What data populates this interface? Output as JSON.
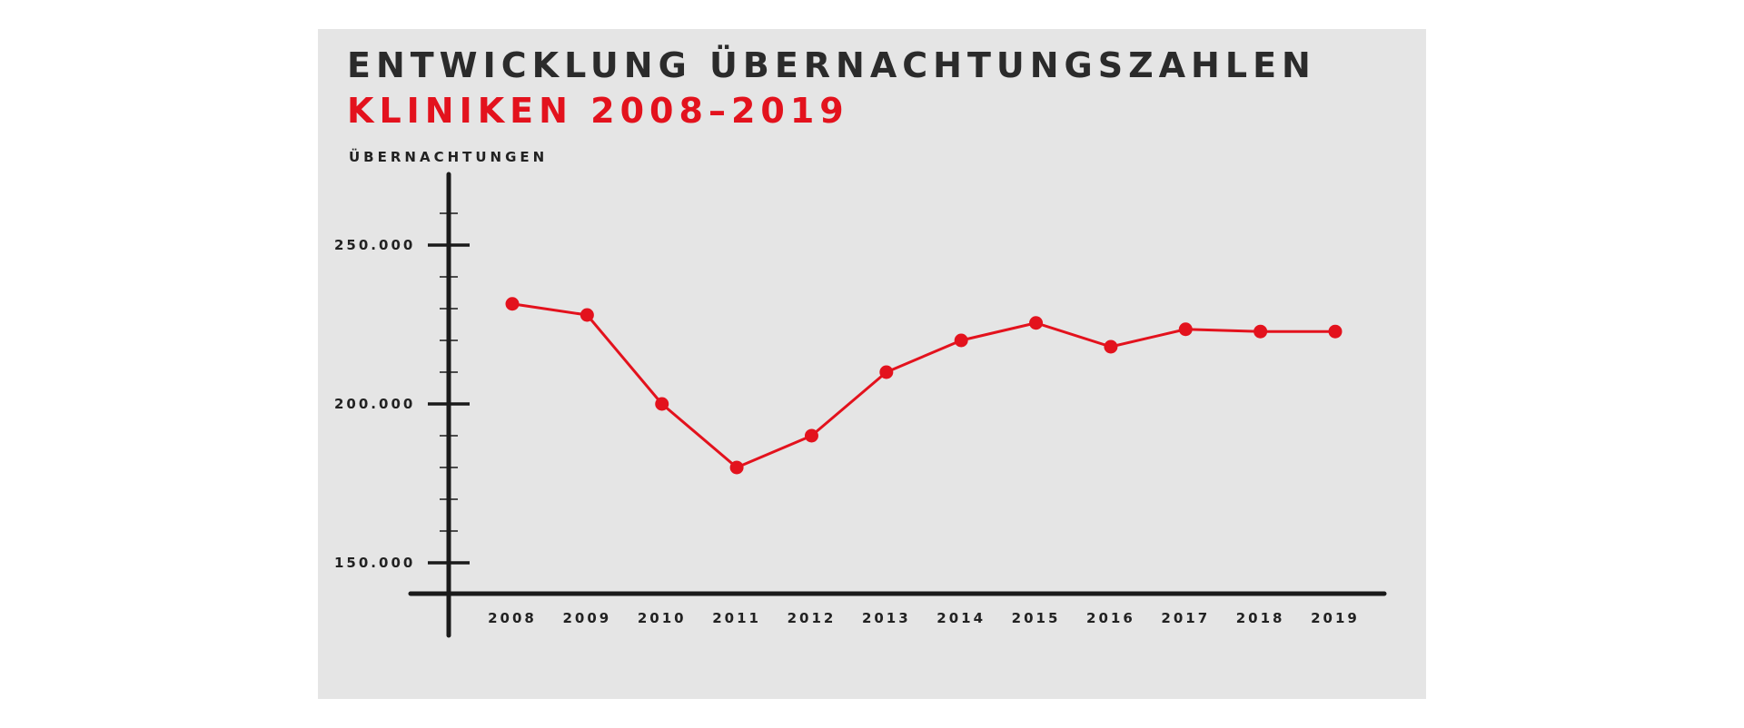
{
  "colors": {
    "panel": "#e5e5e5",
    "title": "#2b2b2b",
    "accent": "#e3121d",
    "axis": "#1a1a1a"
  },
  "chart_data": {
    "type": "line",
    "title": "ENTWICKLUNG ÜBERNACHTUNGSZAHLEN",
    "subtitle": "KLINIKEN 2008–2019",
    "ylabel": "ÜBERNACHTUNGEN",
    "xlabel": "",
    "ylim": [
      140000,
      265000
    ],
    "yticks": [
      150000,
      200000,
      250000
    ],
    "ytick_labels": [
      "150.000",
      "200.000",
      "250.000"
    ],
    "minor_ytick_step": 10000,
    "categories": [
      "2008",
      "2009",
      "2010",
      "2011",
      "2012",
      "2013",
      "2014",
      "2015",
      "2016",
      "2017",
      "2018",
      "2019"
    ],
    "series": [
      {
        "values": [
          231500,
          228000,
          200000,
          180000,
          190000,
          210000,
          220000,
          225500,
          218000,
          223500,
          222800,
          222800
        ],
        "color": "#e3121d"
      }
    ],
    "grid": false,
    "legend": "none"
  }
}
